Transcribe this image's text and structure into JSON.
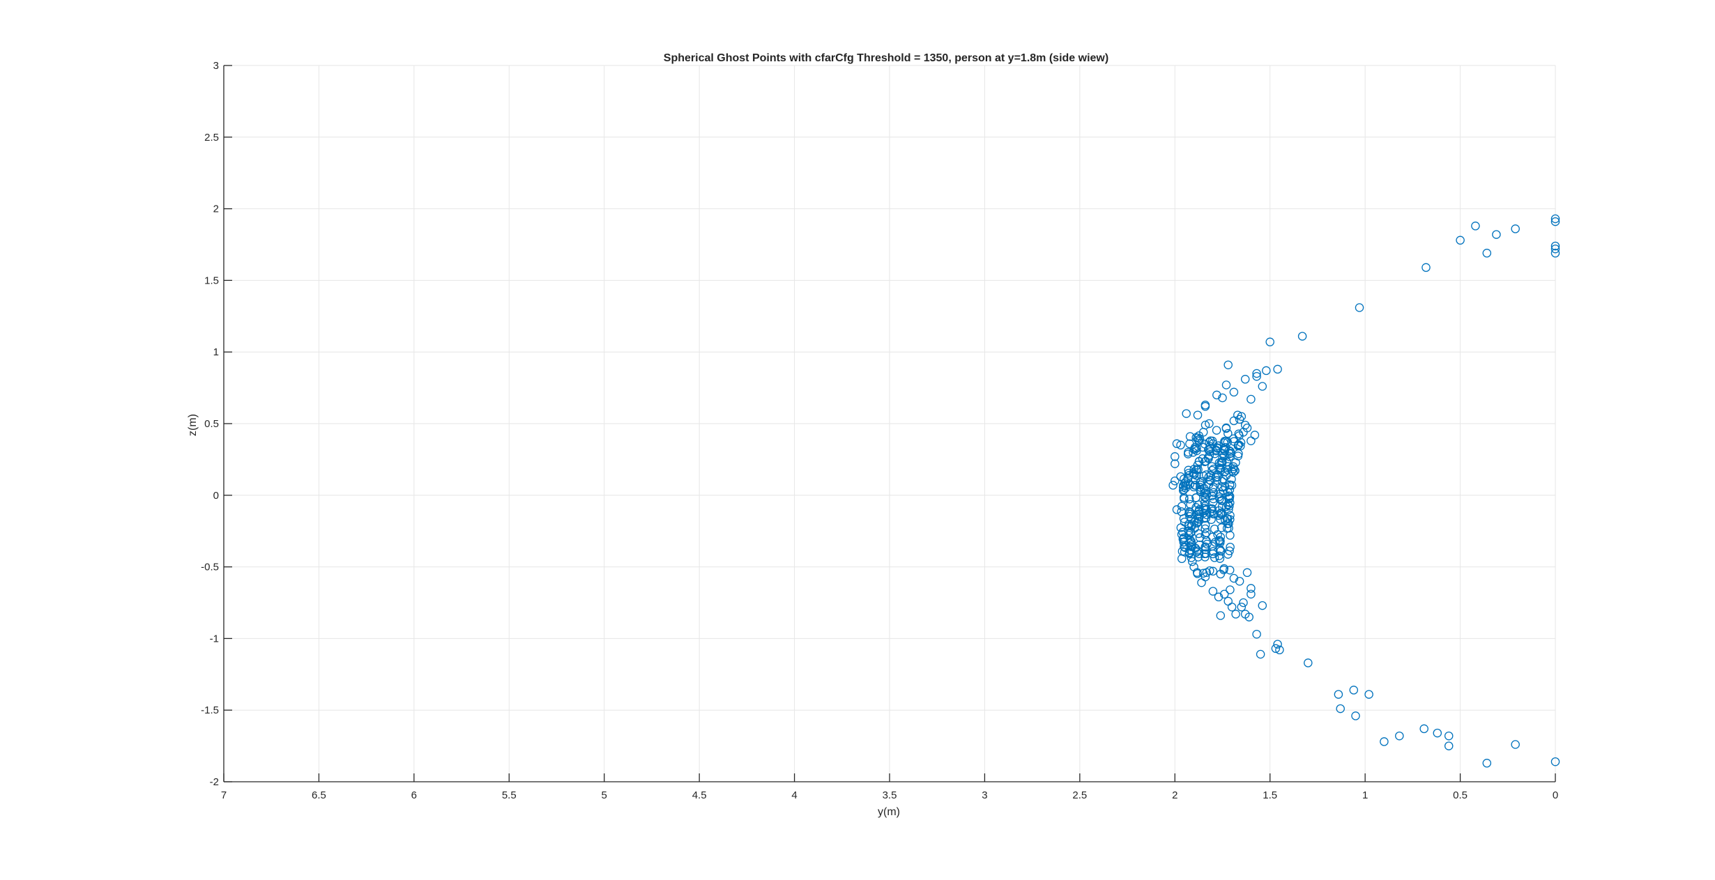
{
  "chart_data": {
    "type": "scatter",
    "title": "Spherical Ghost Points with cfarCfg Threshold = 1350, person at y=1.8m (side wiew)",
    "xlabel": "y(m)",
    "ylabel": "z(m)",
    "xlim": [
      0,
      7
    ],
    "ylim": [
      -2,
      3
    ],
    "x_reversed": true,
    "xticks": [
      7,
      6.5,
      6,
      5.5,
      5,
      4.5,
      4,
      3.5,
      3,
      2.5,
      2,
      1.5,
      1,
      0.5,
      0
    ],
    "xtick_labels": [
      "7",
      "6.5",
      "6",
      "5.5",
      "5",
      "4.5",
      "4",
      "3.5",
      "3",
      "2.5",
      "2",
      "1.5",
      "1",
      "0.5",
      "0"
    ],
    "yticks": [
      -2,
      -1.5,
      -1,
      -0.5,
      0,
      0.5,
      1,
      1.5,
      2,
      2.5,
      3
    ],
    "ytick_labels": [
      "-2",
      "-1.5",
      "-1",
      "-0.5",
      "0",
      "0.5",
      "1",
      "1.5",
      "2",
      "2.5",
      "3"
    ],
    "grid": true,
    "marker": "circle-open",
    "color": "#0072BD",
    "series": [
      {
        "points": [
          [
            0.0,
            1.93
          ],
          [
            0.0,
            1.91
          ],
          [
            0.0,
            1.74
          ],
          [
            0.0,
            1.72
          ],
          [
            0.0,
            1.69
          ],
          [
            0.21,
            1.86
          ],
          [
            0.36,
            1.69
          ],
          [
            0.31,
            1.82
          ],
          [
            0.42,
            1.88
          ],
          [
            0.5,
            1.78
          ],
          [
            0.68,
            1.59
          ],
          [
            1.03,
            1.31
          ],
          [
            1.33,
            1.11
          ],
          [
            1.46,
            0.88
          ],
          [
            1.5,
            1.07
          ],
          [
            1.52,
            0.87
          ],
          [
            1.54,
            0.76
          ],
          [
            1.57,
            0.85
          ],
          [
            1.57,
            0.83
          ],
          [
            1.6,
            0.67
          ],
          [
            1.63,
            0.81
          ],
          [
            1.72,
            0.91
          ],
          [
            1.78,
            0.7
          ],
          [
            1.73,
            0.77
          ],
          [
            1.69,
            0.72
          ],
          [
            1.75,
            0.68
          ],
          [
            1.84,
            0.63
          ],
          [
            1.84,
            0.62
          ],
          [
            1.94,
            0.57
          ],
          [
            1.88,
            0.56
          ],
          [
            1.65,
            0.55
          ],
          [
            0.0,
            -1.86
          ],
          [
            0.21,
            -1.74
          ],
          [
            0.36,
            -1.87
          ],
          [
            0.56,
            -1.75
          ],
          [
            0.56,
            -1.68
          ],
          [
            0.62,
            -1.66
          ],
          [
            0.69,
            -1.63
          ],
          [
            0.82,
            -1.68
          ],
          [
            0.9,
            -1.72
          ],
          [
            0.98,
            -1.39
          ],
          [
            1.06,
            -1.36
          ],
          [
            1.05,
            -1.54
          ],
          [
            1.13,
            -1.49
          ],
          [
            1.14,
            -1.39
          ],
          [
            1.3,
            -1.17
          ],
          [
            1.46,
            -1.04
          ],
          [
            1.45,
            -1.08
          ],
          [
            1.47,
            -1.07
          ],
          [
            1.55,
            -1.11
          ],
          [
            1.57,
            -0.97
          ],
          [
            1.54,
            -0.77
          ],
          [
            1.61,
            -0.85
          ],
          [
            1.63,
            -0.83
          ],
          [
            1.6,
            -0.69
          ],
          [
            1.6,
            -0.65
          ],
          [
            1.64,
            -0.75
          ],
          [
            1.65,
            -0.78
          ],
          [
            1.68,
            -0.83
          ],
          [
            1.7,
            -0.78
          ],
          [
            1.72,
            -0.74
          ],
          [
            1.76,
            -0.84
          ],
          [
            1.77,
            -0.71
          ],
          [
            1.8,
            -0.67
          ],
          [
            1.86,
            -0.61
          ],
          [
            1.62,
            -0.54
          ],
          [
            1.66,
            -0.6
          ],
          [
            1.69,
            -0.58
          ],
          [
            1.76,
            -0.55
          ],
          [
            1.8,
            -0.53
          ],
          [
            1.9,
            -0.5
          ],
          [
            1.84,
            -0.57
          ],
          [
            1.71,
            -0.66
          ],
          [
            1.74,
            -0.69
          ],
          [
            1.92,
            0.41
          ],
          [
            1.99,
            0.36
          ],
          [
            1.97,
            0.35
          ],
          [
            2.0,
            0.27
          ],
          [
            2.0,
            0.22
          ],
          [
            1.97,
            0.13
          ],
          [
            2.0,
            0.1
          ],
          [
            2.01,
            0.07
          ],
          [
            1.99,
            -0.1
          ],
          [
            1.93,
            0.3
          ],
          [
            1.9,
            0.32
          ],
          [
            1.88,
            0.4
          ],
          [
            1.85,
            0.44
          ],
          [
            1.82,
            0.37
          ],
          [
            1.8,
            0.36
          ],
          [
            1.82,
            0.5
          ],
          [
            1.79,
            0.29
          ],
          [
            1.58,
            0.42
          ],
          [
            1.6,
            0.38
          ],
          [
            1.62,
            0.47
          ],
          [
            1.63,
            0.49
          ],
          [
            1.64,
            0.44
          ],
          [
            1.66,
            0.53
          ],
          [
            1.67,
            0.56
          ],
          [
            1.69,
            0.52
          ]
        ]
      }
    ]
  }
}
